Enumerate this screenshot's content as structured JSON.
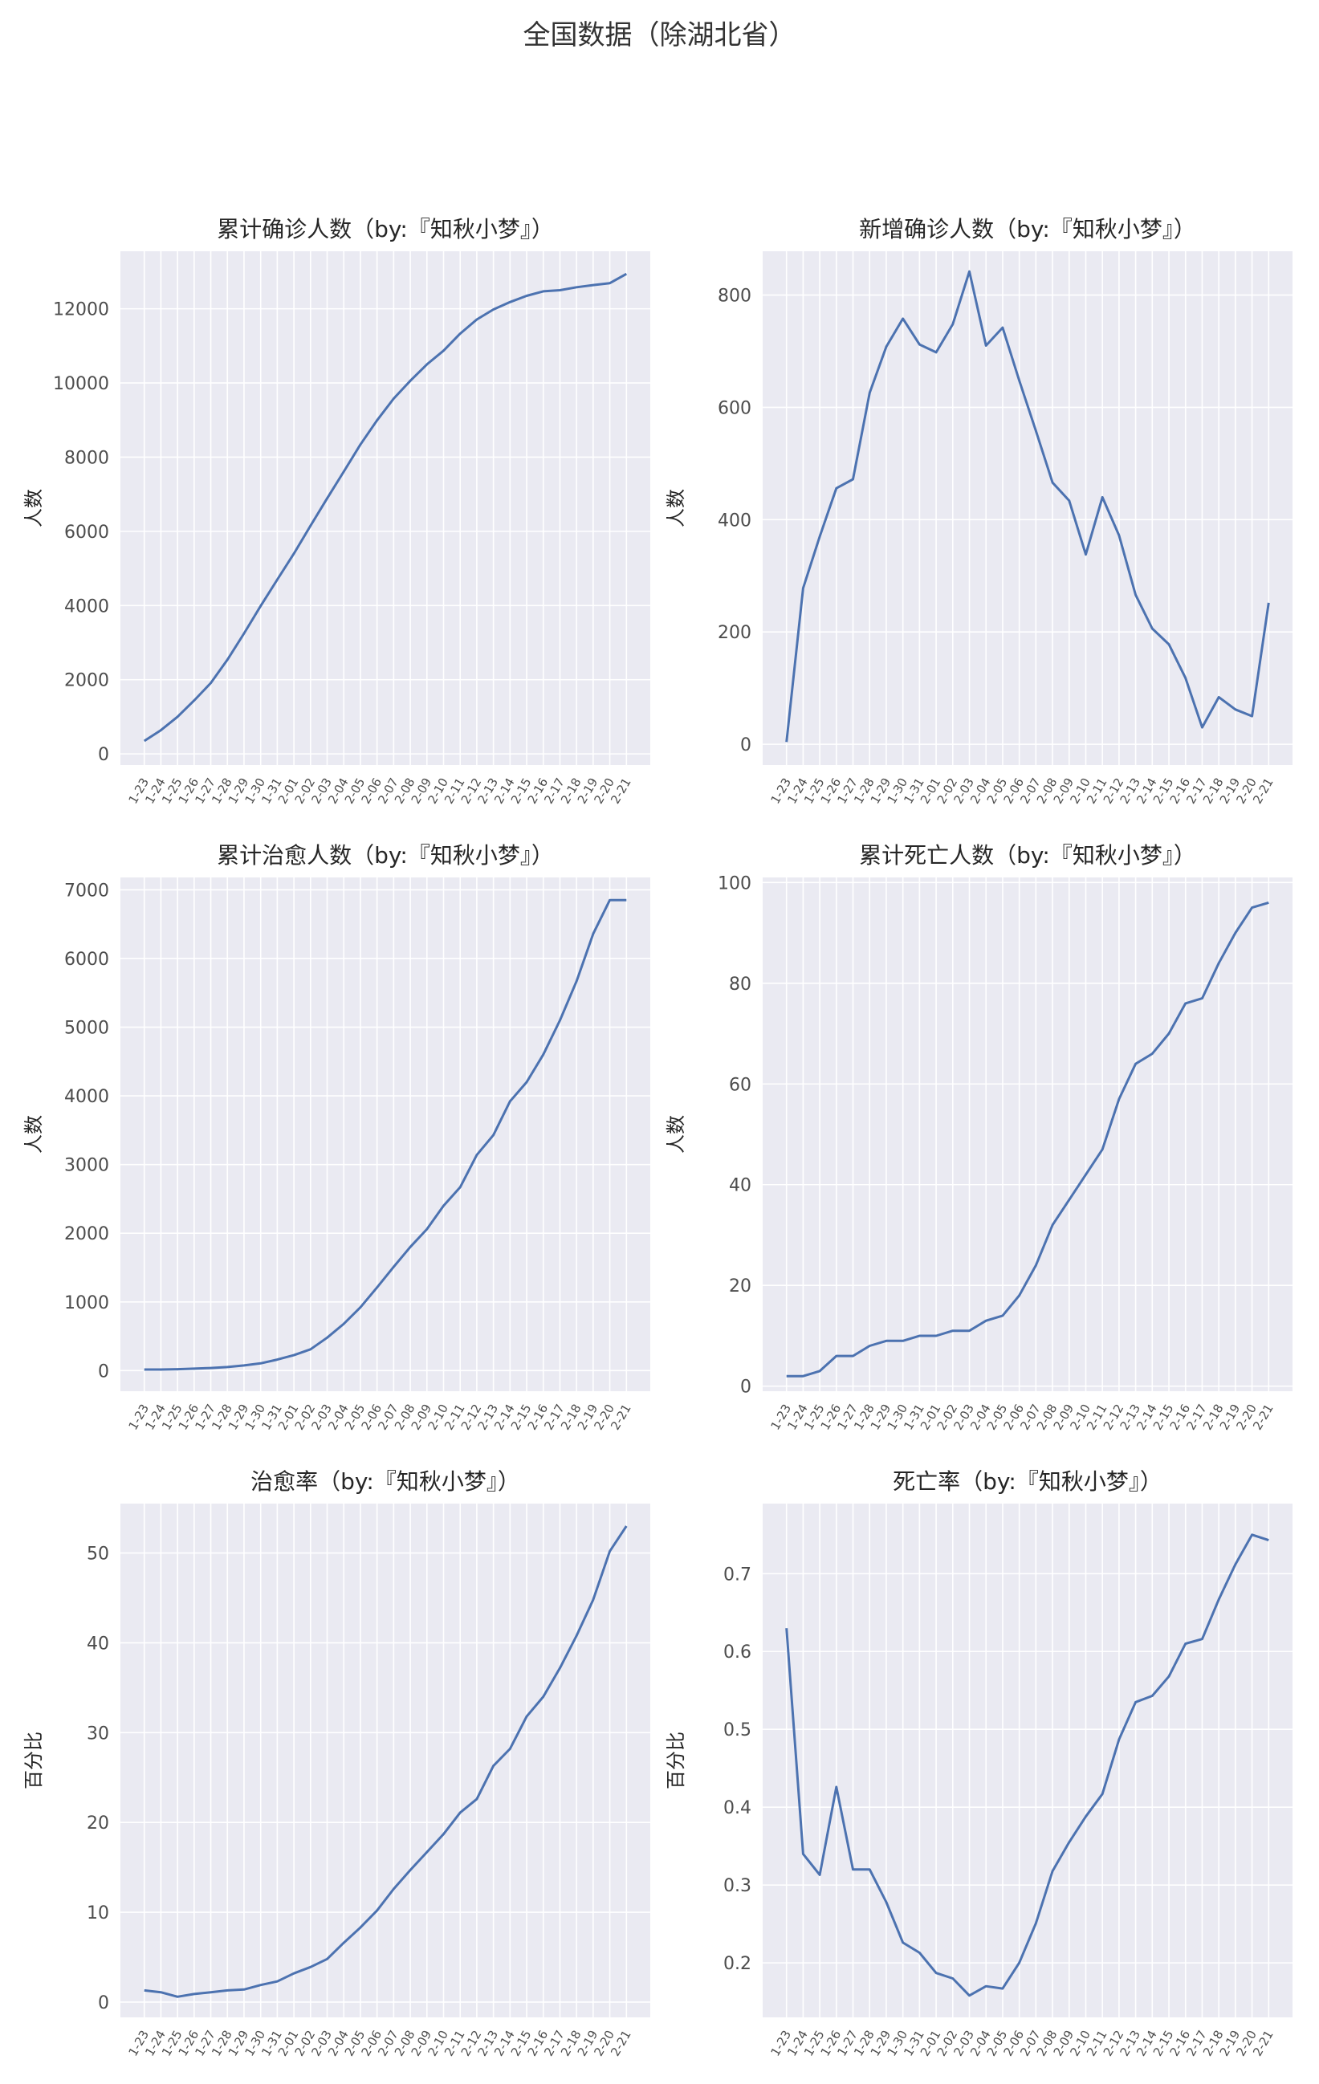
{
  "figure_title": "全国数据（除湖北省）",
  "style": {
    "bg": "#eaeaf2",
    "grid": "#ffffff",
    "line": "#4c72b0",
    "text": "#262626"
  },
  "chart_data": [
    {
      "type": "line",
      "title": "累计确诊人数（by:『知秋小梦』）",
      "ylabel": "人数",
      "xlabel": "",
      "x": [
        "1-23",
        "1-24",
        "1-25",
        "1-26",
        "1-27",
        "1-28",
        "1-29",
        "1-30",
        "1-31",
        "2-01",
        "2-02",
        "2-03",
        "2-04",
        "2-05",
        "2-06",
        "2-07",
        "2-08",
        "2-09",
        "2-10",
        "2-11",
        "2-12",
        "2-13",
        "2-14",
        "2-15",
        "2-16",
        "2-17",
        "2-18",
        "2-19",
        "2-20",
        "2-21"
      ],
      "values": [
        350,
        640,
        1000,
        1440,
        1910,
        2540,
        3250,
        3990,
        4700,
        5400,
        6150,
        6890,
        7610,
        8340,
        8990,
        9580,
        10060,
        10500,
        10870,
        11330,
        11710,
        11980,
        12180,
        12350,
        12470,
        12500,
        12580,
        12640,
        12690,
        12940
      ],
      "yticks": [
        0,
        2000,
        4000,
        6000,
        8000,
        10000,
        12000
      ],
      "ylim": [
        -300,
        13550
      ],
      "grid": true
    },
    {
      "type": "line",
      "title": "新增确诊人数（by:『知秋小梦』）",
      "ylabel": "人数",
      "xlabel": "",
      "x": [
        "1-23",
        "1-24",
        "1-25",
        "1-26",
        "1-27",
        "1-28",
        "1-29",
        "1-30",
        "1-31",
        "2-01",
        "2-02",
        "2-03",
        "2-04",
        "2-05",
        "2-06",
        "2-07",
        "2-08",
        "2-09",
        "2-10",
        "2-11",
        "2-12",
        "2-13",
        "2-14",
        "2-15",
        "2-16",
        "2-17",
        "2-18",
        "2-19",
        "2-20",
        "2-21"
      ],
      "values": [
        4,
        278,
        370,
        456,
        472,
        626,
        708,
        758,
        712,
        698,
        748,
        842,
        710,
        742,
        648,
        558,
        466,
        434,
        338,
        440,
        372,
        266,
        206,
        178,
        118,
        30,
        84,
        62,
        50,
        252
      ],
      "yticks": [
        0,
        200,
        400,
        600,
        800
      ],
      "ylim": [
        -37,
        878
      ],
      "grid": true
    },
    {
      "type": "line",
      "title": "累计治愈人数（by:『知秋小梦』）",
      "ylabel": "人数",
      "xlabel": "",
      "x": [
        "1-23",
        "1-24",
        "1-25",
        "1-26",
        "1-27",
        "1-28",
        "1-29",
        "1-30",
        "1-31",
        "2-01",
        "2-02",
        "2-03",
        "2-04",
        "2-05",
        "2-06",
        "2-07",
        "2-08",
        "2-09",
        "2-10",
        "2-11",
        "2-12",
        "2-13",
        "2-14",
        "2-15",
        "2-16",
        "2-17",
        "2-18",
        "2-19",
        "2-20",
        "2-21"
      ],
      "values": [
        15,
        15,
        20,
        28,
        38,
        52,
        75,
        105,
        160,
        225,
        310,
        480,
        680,
        920,
        1210,
        1510,
        1800,
        2060,
        2400,
        2670,
        3140,
        3430,
        3920,
        4200,
        4600,
        5100,
        5670,
        6360,
        6850,
        6850
      ],
      "yticks": [
        0,
        1000,
        2000,
        3000,
        4000,
        5000,
        6000,
        7000
      ],
      "ylim": [
        -300,
        7180
      ],
      "grid": true
    },
    {
      "type": "line",
      "title": "累计死亡人数（by:『知秋小梦』）",
      "ylabel": "人数",
      "xlabel": "",
      "x": [
        "1-23",
        "1-24",
        "1-25",
        "1-26",
        "1-27",
        "1-28",
        "1-29",
        "1-30",
        "1-31",
        "2-01",
        "2-02",
        "2-03",
        "2-04",
        "2-05",
        "2-06",
        "2-07",
        "2-08",
        "2-09",
        "2-10",
        "2-11",
        "2-12",
        "2-13",
        "2-14",
        "2-15",
        "2-16",
        "2-17",
        "2-18",
        "2-19",
        "2-20",
        "2-21"
      ],
      "values": [
        2,
        2,
        3,
        6,
        6,
        8,
        9,
        9,
        10,
        10,
        11,
        11,
        13,
        14,
        18,
        24,
        32,
        37,
        42,
        47,
        57,
        64,
        66,
        70,
        76,
        77,
        84,
        90,
        95,
        96
      ],
      "yticks": [
        0,
        20,
        40,
        60,
        80,
        100
      ],
      "ylim": [
        -1,
        101
      ],
      "grid": true
    },
    {
      "type": "line",
      "title": "治愈率（by:『知秋小梦』）",
      "ylabel": "百分比",
      "xlabel": "",
      "x": [
        "1-23",
        "1-24",
        "1-25",
        "1-26",
        "1-27",
        "1-28",
        "1-29",
        "1-30",
        "1-31",
        "2-01",
        "2-02",
        "2-03",
        "2-04",
        "2-05",
        "2-06",
        "2-07",
        "2-08",
        "2-09",
        "2-10",
        "2-11",
        "2-12",
        "2-13",
        "2-14",
        "2-15",
        "2-16",
        "2-17",
        "2-18",
        "2-19",
        "2-20",
        "2-21"
      ],
      "values": [
        1.3,
        1.1,
        0.6,
        0.9,
        1.1,
        1.3,
        1.4,
        1.9,
        2.3,
        3.2,
        3.9,
        4.8,
        6.6,
        8.3,
        10.2,
        12.6,
        14.7,
        16.7,
        18.7,
        21.1,
        22.6,
        26.3,
        28.2,
        31.8,
        34.0,
        37.2,
        40.8,
        44.8,
        50.2,
        53.0
      ],
      "yticks": [
        0,
        10,
        20,
        30,
        40,
        50
      ],
      "ylim": [
        -1.7,
        55.5
      ],
      "grid": true
    },
    {
      "type": "line",
      "title": "死亡率（by:『知秋小梦』）",
      "ylabel": "百分比",
      "xlabel": "",
      "x": [
        "1-23",
        "1-24",
        "1-25",
        "1-26",
        "1-27",
        "1-28",
        "1-29",
        "1-30",
        "1-31",
        "2-01",
        "2-02",
        "2-03",
        "2-04",
        "2-05",
        "2-06",
        "2-07",
        "2-08",
        "2-09",
        "2-10",
        "2-11",
        "2-12",
        "2-13",
        "2-14",
        "2-15",
        "2-16",
        "2-17",
        "2-18",
        "2-19",
        "2-20",
        "2-21"
      ],
      "values": [
        0.63,
        0.34,
        0.313,
        0.426,
        0.32,
        0.32,
        0.278,
        0.226,
        0.213,
        0.187,
        0.18,
        0.158,
        0.17,
        0.167,
        0.2,
        0.251,
        0.318,
        0.355,
        0.388,
        0.417,
        0.487,
        0.535,
        0.543,
        0.568,
        0.61,
        0.616,
        0.667,
        0.712,
        0.75,
        0.743
      ],
      "yticks": [
        0.2,
        0.3,
        0.4,
        0.5,
        0.6,
        0.7
      ],
      "ylim": [
        0.13,
        0.79
      ],
      "grid": true
    }
  ]
}
